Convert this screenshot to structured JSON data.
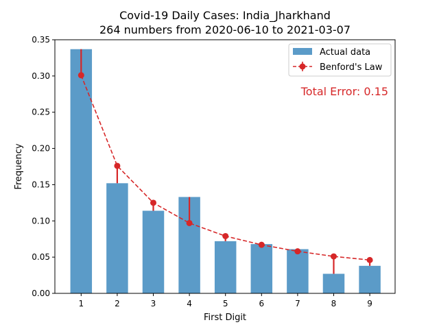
{
  "chart_data": {
    "type": "bar",
    "title_line1": "Covid-19 Daily Cases: India_Jharkhand",
    "title_line2": "264 numbers from 2020-06-10 to 2021-03-07",
    "xlabel": "First Digit",
    "ylabel": "Frequency",
    "categories": [
      "1",
      "2",
      "3",
      "4",
      "5",
      "6",
      "7",
      "8",
      "9"
    ],
    "ylim": [
      0,
      0.35
    ],
    "yticks": [
      "0.00",
      "0.05",
      "0.10",
      "0.15",
      "0.20",
      "0.25",
      "0.30",
      "0.35"
    ],
    "series": [
      {
        "name": "Actual data",
        "kind": "bar",
        "color": "#5b9bc8",
        "values": [
          0.337,
          0.152,
          0.114,
          0.133,
          0.072,
          0.068,
          0.061,
          0.027,
          0.038
        ]
      },
      {
        "name": "Benford's Law",
        "kind": "line",
        "color": "#d62728",
        "values": [
          0.301,
          0.176,
          0.125,
          0.097,
          0.079,
          0.067,
          0.058,
          0.051,
          0.046
        ]
      }
    ],
    "annotation": "Total Error: 0.15",
    "legend_position": "top-right",
    "grid": false
  }
}
